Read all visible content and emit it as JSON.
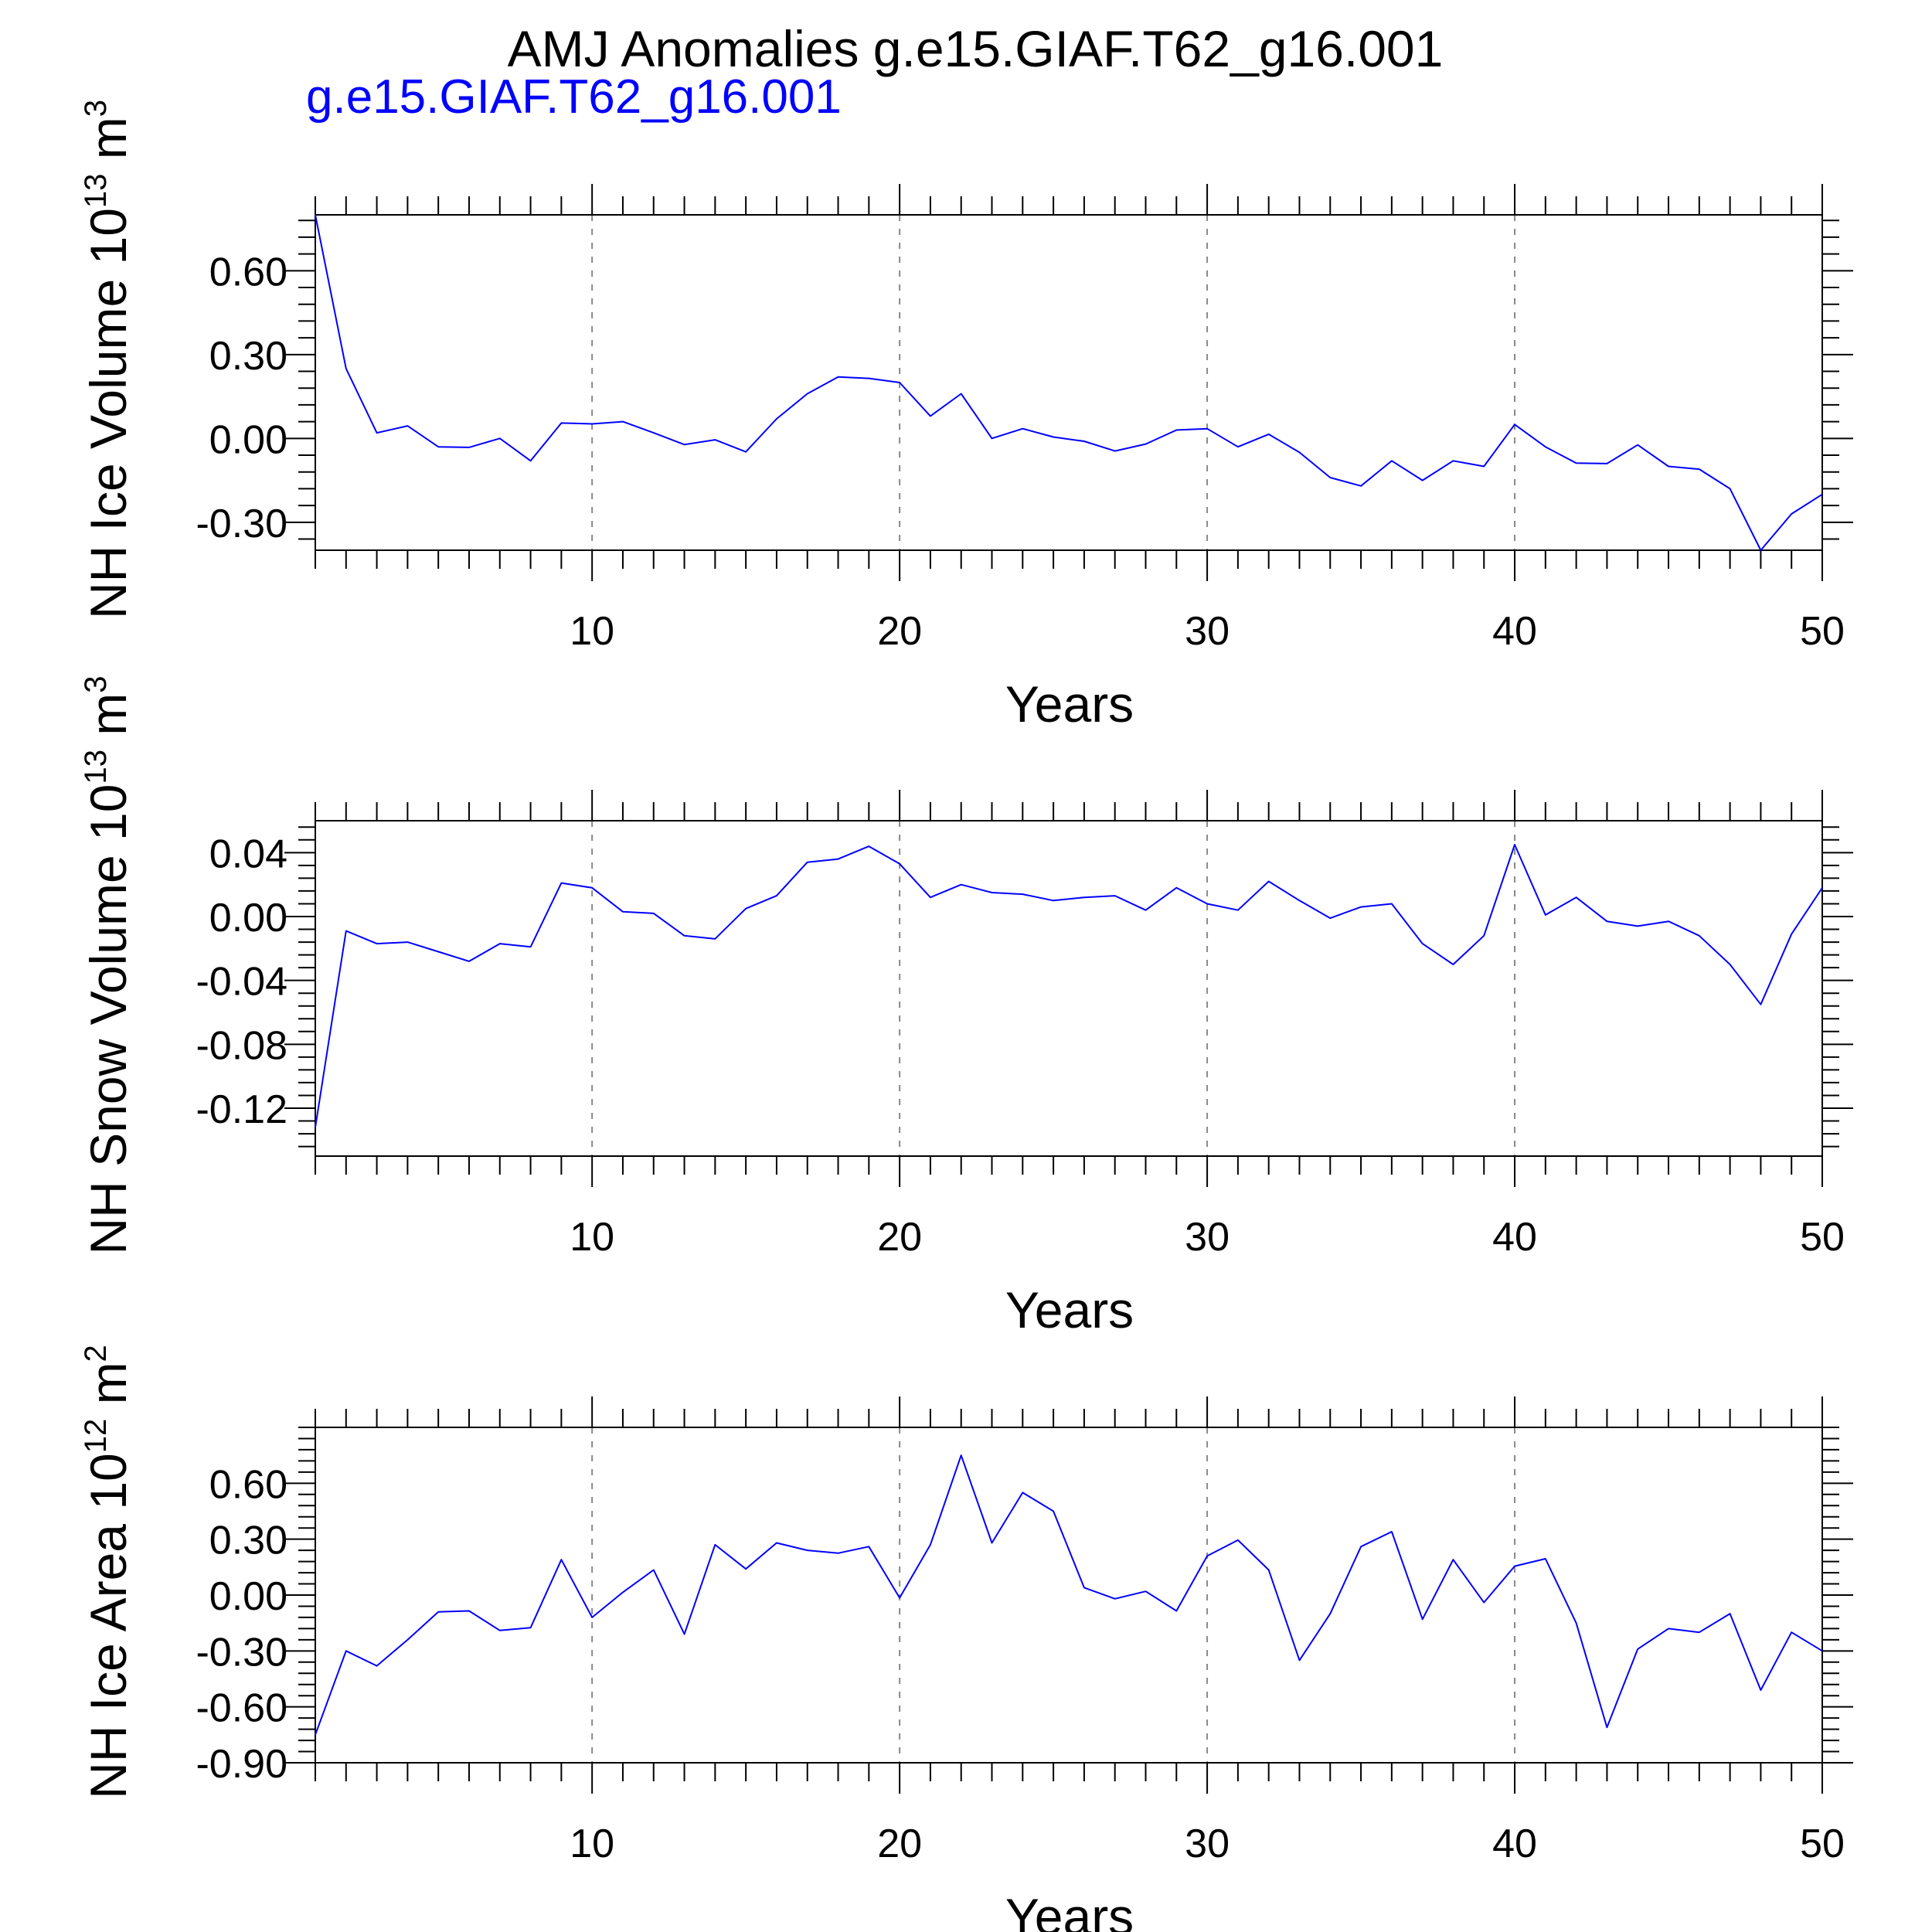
{
  "figure": {
    "title": "AMJ Anomalies g.e15.GIAF.T62_g16.001",
    "legend_label": "g.e15.GIAF.T62_g16.001",
    "legend_color": "#0000ff",
    "line_color": "#0000ff",
    "grid_color": "#888888",
    "text_color": "#000000"
  },
  "chart_data": [
    {
      "type": "line",
      "ylabel_main": "NH Ice Volume 10",
      "ylabel_exp": "13",
      "ylabel_unit": " m",
      "ylabel_pow": "3",
      "xlabel": "Years",
      "xlim": [
        1,
        50
      ],
      "ylim": [
        -0.4,
        0.8
      ],
      "xticks": [
        10,
        20,
        30,
        40,
        50
      ],
      "xtick_labels": [
        "10",
        "20",
        "30",
        "40",
        "50"
      ],
      "yticks": [
        -0.3,
        0.0,
        0.3,
        0.6
      ],
      "ytick_labels": [
        "-0.30",
        "0.00",
        "0.30",
        "0.60"
      ],
      "grid": "x dashed",
      "series": [
        {
          "x": [
            1,
            2,
            3,
            4,
            5,
            6,
            7,
            8,
            9,
            10,
            11,
            12,
            13,
            14,
            15,
            16,
            17,
            18,
            19,
            20,
            21,
            22,
            23,
            24,
            25,
            26,
            27,
            28,
            29,
            30,
            31,
            32,
            33,
            34,
            35,
            36,
            37,
            38,
            39,
            40,
            41,
            42,
            43,
            44,
            45,
            46,
            47,
            48,
            49,
            50
          ],
          "values": [
            0.8,
            0.25,
            0.02,
            0.045,
            -0.03,
            -0.032,
            0.0,
            -0.08,
            0.055,
            0.052,
            0.06,
            0.02,
            -0.022,
            -0.005,
            -0.048,
            0.07,
            0.16,
            0.22,
            0.215,
            0.2,
            0.08,
            0.16,
            0.0,
            0.035,
            0.005,
            -0.01,
            -0.045,
            -0.02,
            0.03,
            0.035,
            -0.03,
            0.015,
            -0.05,
            -0.14,
            -0.17,
            -0.08,
            -0.15,
            -0.08,
            -0.1,
            0.05,
            -0.03,
            -0.088,
            -0.09,
            -0.023,
            -0.1,
            -0.11,
            -0.18,
            -0.4,
            -0.27,
            -0.2
          ]
        }
      ]
    },
    {
      "type": "line",
      "ylabel_main": "NH Snow Volume 10",
      "ylabel_exp": "13",
      "ylabel_unit": " m",
      "ylabel_pow": "3",
      "xlabel": "Years",
      "xlim": [
        1,
        50
      ],
      "ylim": [
        -0.15,
        0.06
      ],
      "xticks": [
        10,
        20,
        30,
        40,
        50
      ],
      "xtick_labels": [
        "10",
        "20",
        "30",
        "40",
        "50"
      ],
      "yticks": [
        -0.12,
        -0.08,
        -0.04,
        0.0,
        0.04
      ],
      "ytick_labels": [
        "-0.12",
        "-0.08",
        "-0.04",
        "0.00",
        "0.04"
      ],
      "grid": "x dashed",
      "series": [
        {
          "x": [
            1,
            2,
            3,
            4,
            5,
            6,
            7,
            8,
            9,
            10,
            11,
            12,
            13,
            14,
            15,
            16,
            17,
            18,
            19,
            20,
            21,
            22,
            23,
            24,
            25,
            26,
            27,
            28,
            29,
            30,
            31,
            32,
            33,
            34,
            35,
            36,
            37,
            38,
            39,
            40,
            41,
            42,
            43,
            44,
            45,
            46,
            47,
            48,
            49,
            50
          ],
          "values": [
            -0.132,
            -0.009,
            -0.017,
            -0.016,
            -0.022,
            -0.028,
            -0.017,
            -0.019,
            0.021,
            0.018,
            0.003,
            0.002,
            -0.012,
            -0.014,
            0.005,
            0.013,
            0.034,
            0.036,
            0.044,
            0.033,
            0.012,
            0.02,
            0.015,
            0.014,
            0.01,
            0.012,
            0.013,
            0.004,
            0.018,
            0.008,
            0.004,
            0.022,
            0.01,
            -0.001,
            0.006,
            0.008,
            -0.017,
            -0.03,
            -0.012,
            0.045,
            0.001,
            0.012,
            -0.003,
            -0.006,
            -0.003,
            -0.012,
            -0.03,
            -0.055,
            -0.011,
            0.018
          ]
        }
      ]
    },
    {
      "type": "line",
      "ylabel_main": "NH Ice Area 10",
      "ylabel_exp": "12",
      "ylabel_unit": " m",
      "ylabel_pow": "2",
      "xlabel": "Years",
      "xlim": [
        1,
        50
      ],
      "ylim": [
        -0.9,
        0.9
      ],
      "xticks": [
        10,
        20,
        30,
        40,
        50
      ],
      "xtick_labels": [
        "10",
        "20",
        "30",
        "40",
        "50"
      ],
      "yticks": [
        -0.9,
        -0.6,
        -0.3,
        0.0,
        0.3,
        0.6
      ],
      "ytick_labels": [
        "-0.90",
        "-0.60",
        "-0.30",
        "0.00",
        "0.30",
        "0.60"
      ],
      "grid": "x dashed",
      "series": [
        {
          "x": [
            1,
            2,
            3,
            4,
            5,
            6,
            7,
            8,
            9,
            10,
            11,
            12,
            13,
            14,
            15,
            16,
            17,
            18,
            19,
            20,
            21,
            22,
            23,
            24,
            25,
            26,
            27,
            28,
            29,
            30,
            31,
            32,
            33,
            34,
            35,
            36,
            37,
            38,
            39,
            40,
            41,
            42,
            43,
            44,
            45,
            46,
            47,
            48,
            49,
            50
          ],
          "values": [
            -0.75,
            -0.3,
            -0.38,
            -0.24,
            -0.09,
            -0.085,
            -0.19,
            -0.175,
            0.19,
            -0.12,
            0.015,
            0.135,
            -0.21,
            0.27,
            0.14,
            0.28,
            0.24,
            0.225,
            0.26,
            -0.015,
            0.27,
            0.75,
            0.28,
            0.55,
            0.45,
            0.04,
            -0.02,
            0.02,
            -0.085,
            0.21,
            0.295,
            0.135,
            -0.35,
            -0.1,
            0.26,
            0.34,
            -0.13,
            0.19,
            -0.04,
            0.155,
            0.195,
            -0.15,
            -0.71,
            -0.29,
            -0.18,
            -0.2,
            -0.1,
            -0.51,
            -0.2,
            -0.3
          ]
        }
      ]
    }
  ]
}
